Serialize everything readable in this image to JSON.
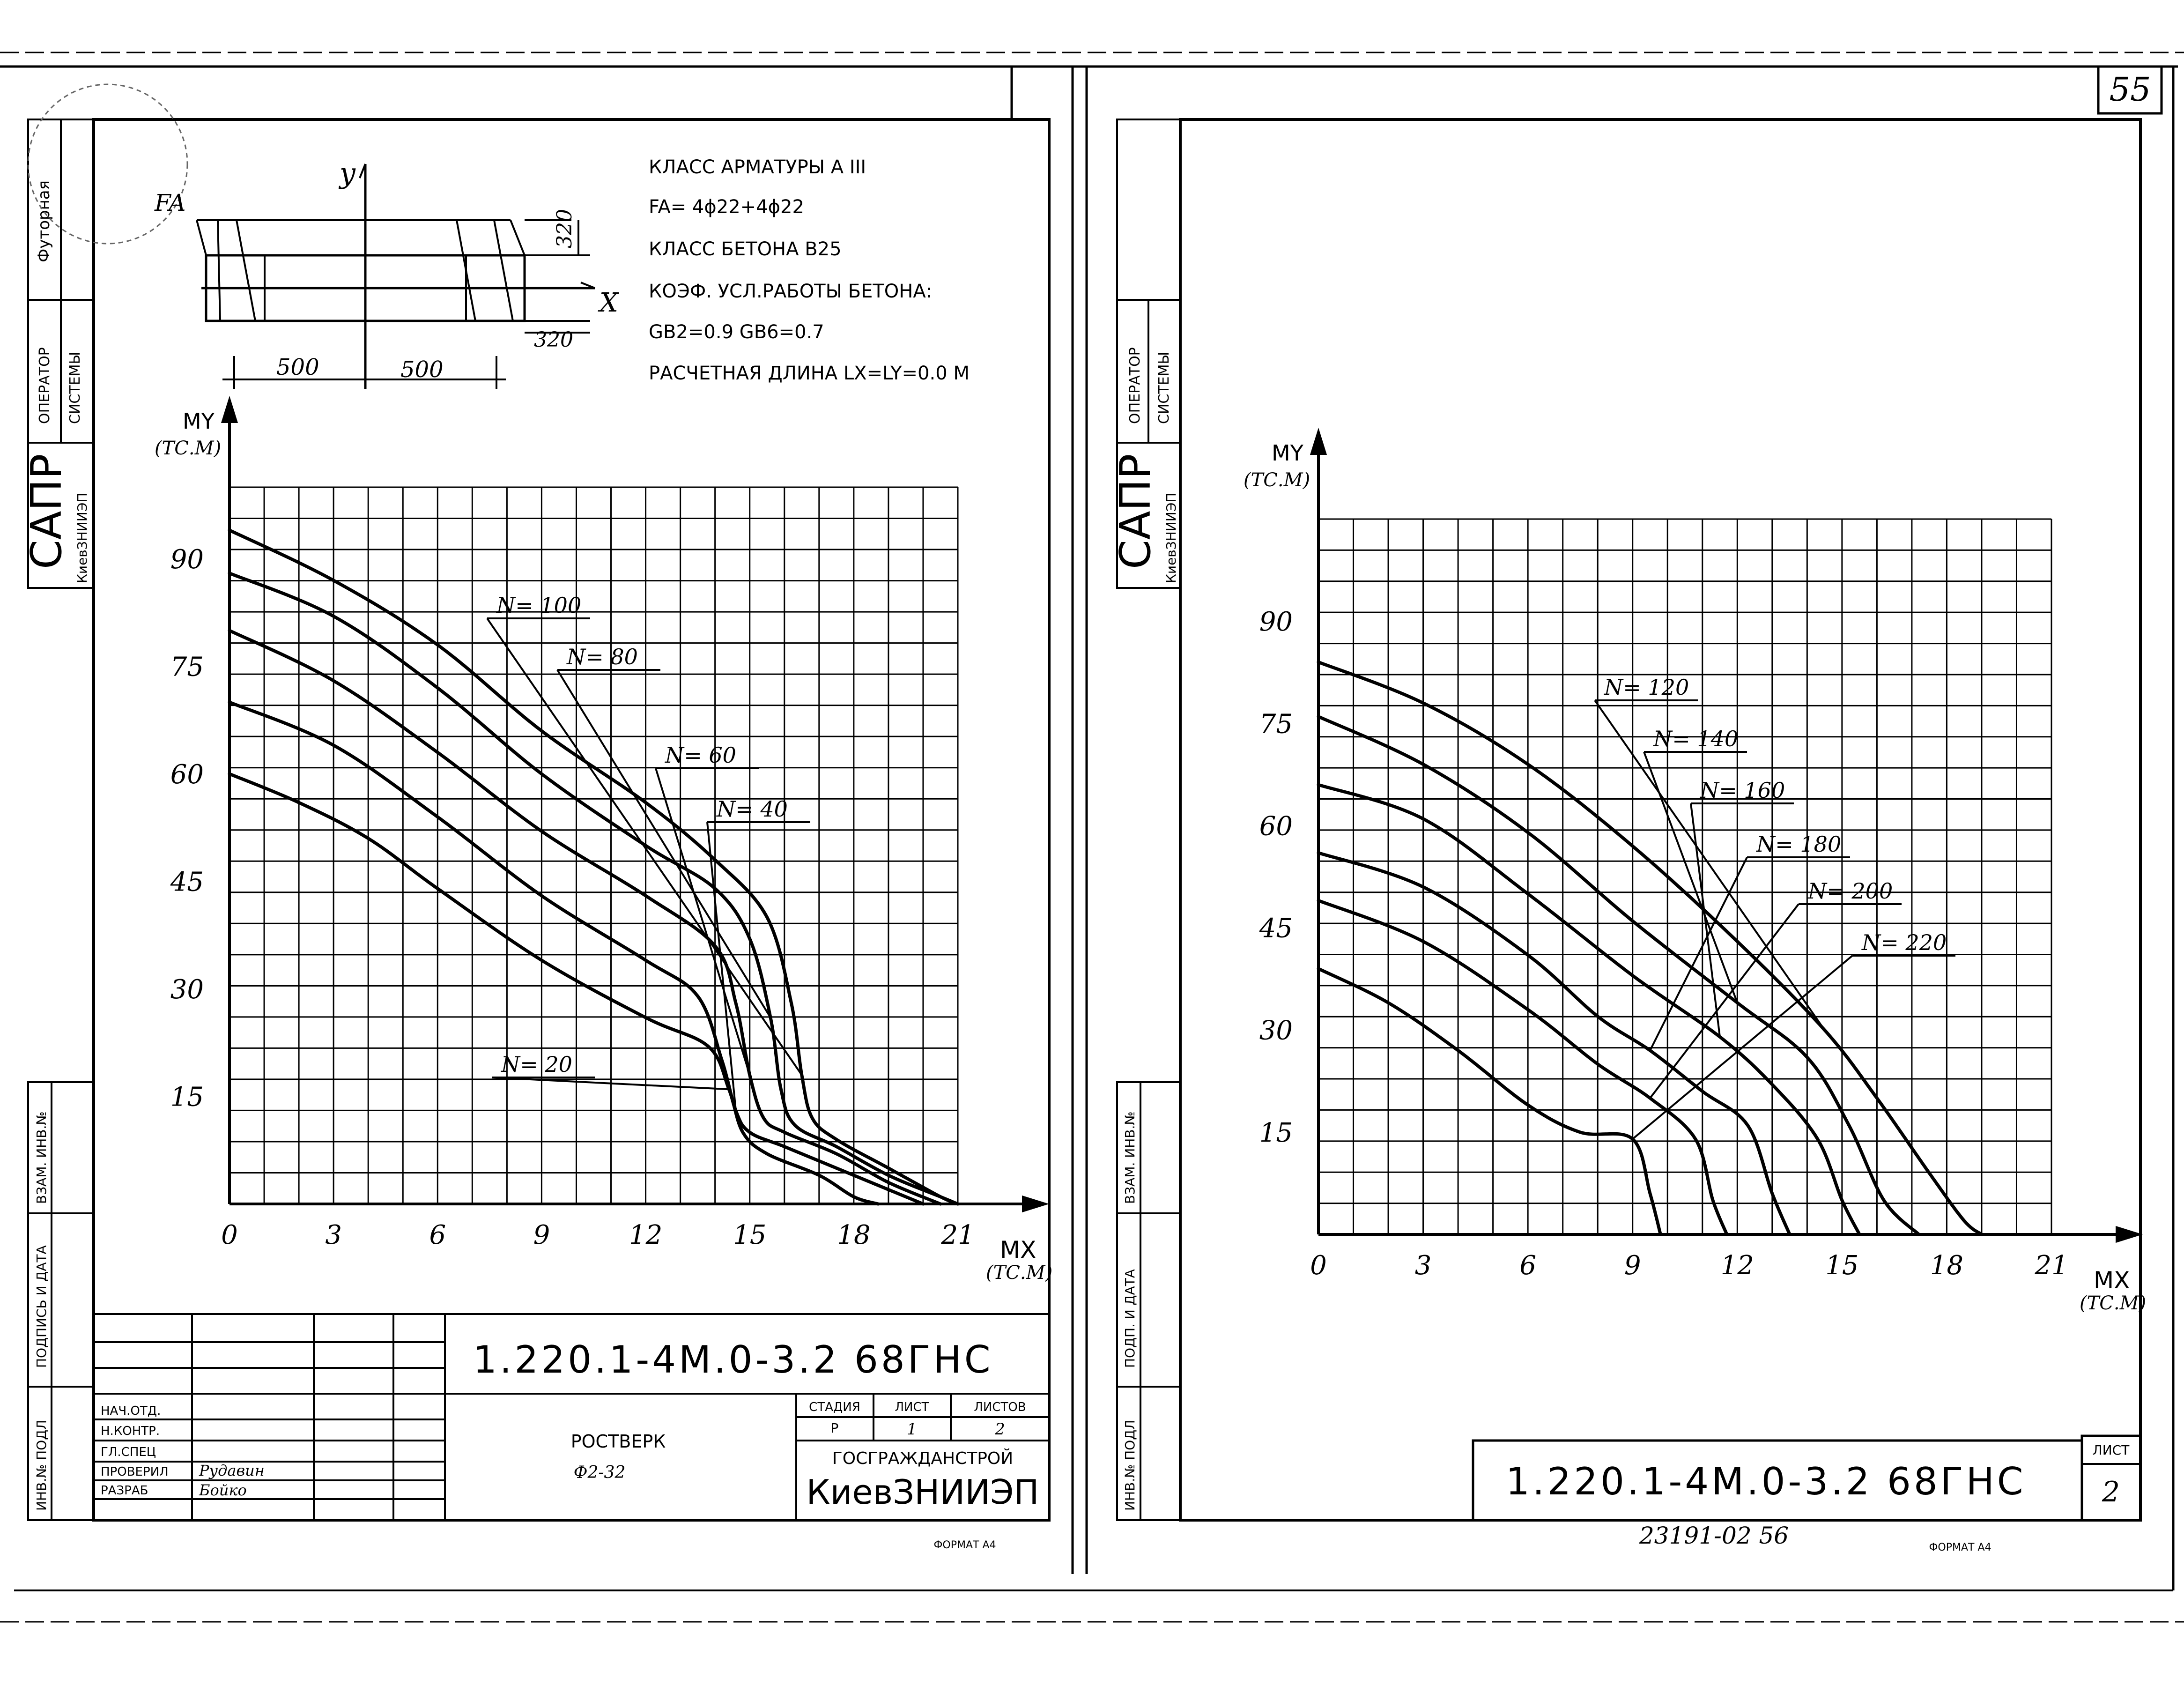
{
  "page_number": "55",
  "colors": {
    "ink": "#000000",
    "paper": "#ffffff"
  },
  "side_stamps": {
    "futornaya": "Футорная",
    "operator": "ОПЕРАТОР",
    "sistemy": "СИСТЕМЫ",
    "sapr": "САПР",
    "kievzniiep": "КиевЗНИИЭП",
    "vzam_inv": "ВЗАМ. ИНВ.№",
    "podpis_data": "ПОДПИСЬ И ДАТА",
    "podp_data_short": "ПОДП. И ДАТА",
    "inv_podl": "ИНВ.№ ПОДЛ"
  },
  "section_sketch": {
    "y_label": "y",
    "x_label": "X",
    "fa_label": "FA",
    "dim_320_top": "320",
    "dim_320_bottom": "320",
    "dim_500_left": "500",
    "dim_500_right": "500"
  },
  "specs": {
    "line1": "КЛАСС АРМАТУРЫ       А III",
    "line2": "FA= 4ϕ22+4ϕ22",
    "line3": "КЛАСС БЕТОНА      B25",
    "line4": "КОЭФ. УСЛ.РАБОТЫ БЕТОНА:",
    "line5": "GB2=0.9        GB6=0.7",
    "line6": "РАСЧЕТНАЯ ДЛИНА    LX=LY=0.0 M"
  },
  "title_block_left": {
    "code": "1.220.1-4M.0-3.2 68ГНС",
    "roles": [
      "НАЧ.ОТД.",
      "Н.КОНТР.",
      "ГЛ.СПЕЦ",
      "ПРОВЕРИЛ",
      "РАЗРАБ"
    ],
    "names": [
      "",
      "",
      "",
      "Рудавин",
      "Бойко"
    ],
    "title_line1": "РОСТВЕРК",
    "title_line2": "Ф2-32",
    "stage_header": "СТАДИЯ",
    "sheet_header": "ЛИСТ",
    "sheets_header": "ЛИСТОВ",
    "stage_value": "Р",
    "sheet_value": "1",
    "sheets_value": "2",
    "org_line1": "ГОСГРАЖДАНСТРОЙ",
    "org_line2": "КиевЗНИИЭП",
    "format": "ФОРМАТ А4"
  },
  "title_block_right": {
    "code": "1.220.1-4M.0-3.2 68ГНС",
    "sheet_header": "ЛИСТ",
    "sheet_value": "2",
    "archive_number": "23191-02   56",
    "format": "ФОРМАТ А4"
  },
  "chart_data": [
    {
      "type": "line",
      "ylabel": "MY",
      "yunit": "(ТС.М)",
      "xlabel": "MX",
      "xunit": "(ТС.М)",
      "xlim": [
        0,
        21
      ],
      "ylim": [
        0,
        100
      ],
      "xticks": [
        0,
        3,
        6,
        9,
        12,
        15,
        18,
        21
      ],
      "yticks": [
        15,
        30,
        45,
        60,
        75,
        90
      ],
      "grid": true,
      "series": [
        {
          "name": "N= 100",
          "label_num": "100",
          "x": [
            0,
            3,
            6,
            9,
            12,
            14,
            15.5,
            16.2,
            16.5,
            16.8,
            17.5,
            19,
            20.5,
            21
          ],
          "y": [
            94,
            87,
            78,
            66,
            56,
            48,
            40,
            28,
            18,
            12,
            9,
            5,
            1,
            0
          ]
        },
        {
          "name": "N= 80",
          "label_num": "80",
          "x": [
            0,
            3,
            6,
            9,
            12,
            14,
            15,
            15.6,
            15.9,
            16.3,
            17.5,
            19,
            20.5,
            21
          ],
          "y": [
            88,
            82,
            72,
            60,
            50,
            44,
            37,
            26,
            16,
            11,
            8,
            4,
            1,
            0
          ]
        },
        {
          "name": "N= 60",
          "label_num": "60",
          "x": [
            0,
            3,
            6,
            9,
            12,
            14,
            14.6,
            15,
            15.4,
            16,
            17.5,
            19,
            20.5
          ],
          "y": [
            80,
            73,
            63,
            52,
            43,
            36,
            28,
            18,
            12,
            10,
            7,
            3,
            0
          ]
        },
        {
          "name": "N= 40",
          "label_num": "40",
          "x": [
            0,
            3,
            6,
            9,
            12,
            13.5,
            14.2,
            14.6,
            15,
            16,
            17.5,
            19,
            20
          ],
          "y": [
            70,
            64,
            54,
            43,
            34,
            29,
            20,
            13,
            10,
            8,
            5,
            2,
            0
          ]
        },
        {
          "name": "N= 20",
          "label_num": "20",
          "x": [
            0,
            2,
            4,
            6,
            9,
            12,
            13.8,
            14.4,
            14.8,
            15.5,
            17,
            18,
            18.7
          ],
          "y": [
            60,
            56,
            51,
            44,
            34,
            26,
            22,
            16,
            10,
            7,
            4,
            1,
            0
          ]
        }
      ]
    },
    {
      "type": "line",
      "ylabel": "MY",
      "yunit": "(ТС.М)",
      "xlabel": "MX",
      "xunit": "(ТС.М)",
      "xlim": [
        0,
        21
      ],
      "ylim": [
        0,
        105
      ],
      "xticks": [
        0,
        3,
        6,
        9,
        12,
        15,
        18,
        21
      ],
      "yticks": [
        15,
        30,
        45,
        60,
        75,
        90
      ],
      "grid": true,
      "series": [
        {
          "name": "N= 120",
          "label_num": "120",
          "x": [
            0,
            3,
            6,
            9,
            12,
            14.5,
            16,
            17.5,
            18.5,
            19
          ],
          "y": [
            84,
            78,
            69,
            57,
            43,
            30,
            20,
            9,
            2,
            0
          ]
        },
        {
          "name": "N= 140",
          "label_num": "140",
          "x": [
            0,
            3,
            6,
            9,
            12,
            14,
            15.2,
            16.2,
            17.2
          ],
          "y": [
            76,
            69,
            59,
            46,
            34,
            26,
            16,
            5,
            0
          ]
        },
        {
          "name": "N= 160",
          "label_num": "160",
          "x": [
            0,
            3,
            6,
            9,
            11.5,
            13,
            14.3,
            15,
            15.5
          ],
          "y": [
            66,
            61,
            50,
            38,
            29,
            22,
            14,
            5,
            0
          ]
        },
        {
          "name": "N= 180",
          "label_num": "180",
          "x": [
            0,
            3,
            6,
            8,
            9.5,
            11,
            12.3,
            13,
            13.5
          ],
          "y": [
            56,
            51,
            41,
            32,
            27,
            21,
            16,
            6,
            0
          ]
        },
        {
          "name": "N= 200",
          "label_num": "200",
          "x": [
            0,
            3,
            6,
            8,
            9.5,
            10.8,
            11.3,
            11.7
          ],
          "y": [
            49,
            43,
            33,
            25,
            20,
            14,
            5,
            0
          ]
        },
        {
          "name": "N= 220",
          "label_num": "220",
          "x": [
            0,
            2,
            4,
            6,
            7.5,
            9,
            9.5,
            9.8
          ],
          "y": [
            39,
            34,
            27,
            19,
            15,
            14,
            6,
            0
          ]
        }
      ]
    }
  ]
}
